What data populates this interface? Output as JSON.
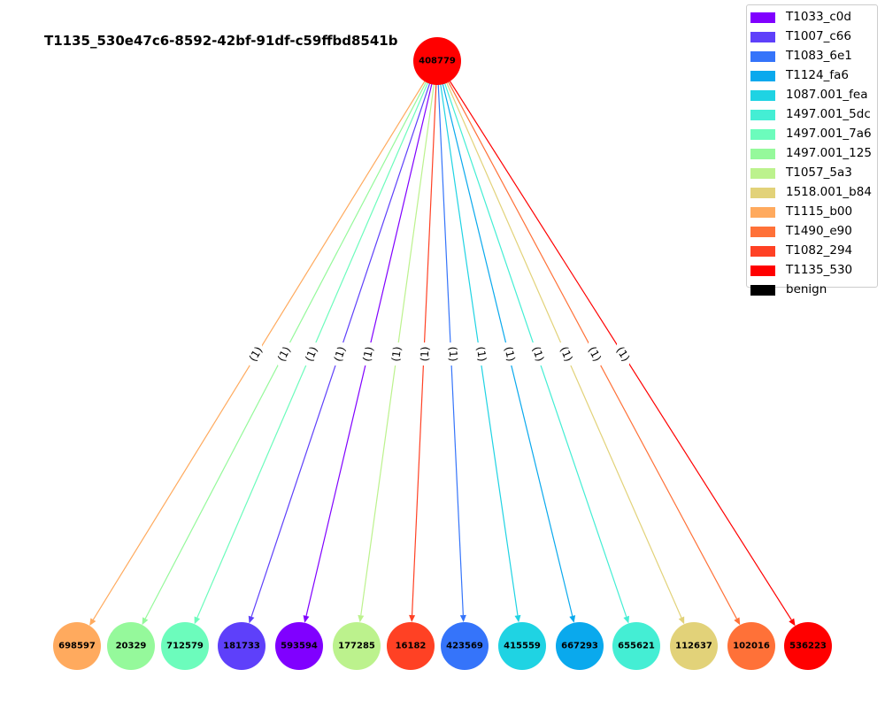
{
  "title": "T1135_530e47c6-8592-42bf-91df-c59ffbd8541b",
  "root": {
    "id": "408779",
    "color": "#ff0000"
  },
  "edge_label": "(1)",
  "children": [
    {
      "id": "698597",
      "color": "#ffaa5e"
    },
    {
      "id": "20329",
      "color": "#95f99b"
    },
    {
      "id": "712579",
      "color": "#6cfcbc"
    },
    {
      "id": "181733",
      "color": "#5e40fa"
    },
    {
      "id": "593594",
      "color": "#8000ff"
    },
    {
      "id": "177285",
      "color": "#bcf28d"
    },
    {
      "id": "16182",
      "color": "#ff4124"
    },
    {
      "id": "423569",
      "color": "#3574fa"
    },
    {
      "id": "415559",
      "color": "#1fd3e3"
    },
    {
      "id": "667293",
      "color": "#0aa9ed"
    },
    {
      "id": "655621",
      "color": "#44eed4"
    },
    {
      "id": "112637",
      "color": "#e2d279"
    },
    {
      "id": "102016",
      "color": "#ff7138"
    },
    {
      "id": "536223",
      "color": "#ff0000"
    }
  ],
  "legend": [
    {
      "label": "T1033_c0d",
      "color": "#8000ff"
    },
    {
      "label": "T1007_c66",
      "color": "#5e40fa"
    },
    {
      "label": "T1083_6e1",
      "color": "#3574fa"
    },
    {
      "label": "T1124_fa6",
      "color": "#0aa9ed"
    },
    {
      "label": "1087.001_fea",
      "color": "#1fd3e3"
    },
    {
      "label": "1497.001_5dc",
      "color": "#44eed4"
    },
    {
      "label": "1497.001_7a6",
      "color": "#6cfcbc"
    },
    {
      "label": "1497.001_125",
      "color": "#95f99b"
    },
    {
      "label": "T1057_5a3",
      "color": "#bcf28d"
    },
    {
      "label": "1518.001_b84",
      "color": "#e2d279"
    },
    {
      "label": "T1115_b00",
      "color": "#ffaa5e"
    },
    {
      "label": "T1490_e90",
      "color": "#ff7138"
    },
    {
      "label": "T1082_294",
      "color": "#ff4124"
    },
    {
      "label": "T1135_530",
      "color": "#ff0000"
    },
    {
      "label": "benign",
      "color": "#000000"
    }
  ]
}
